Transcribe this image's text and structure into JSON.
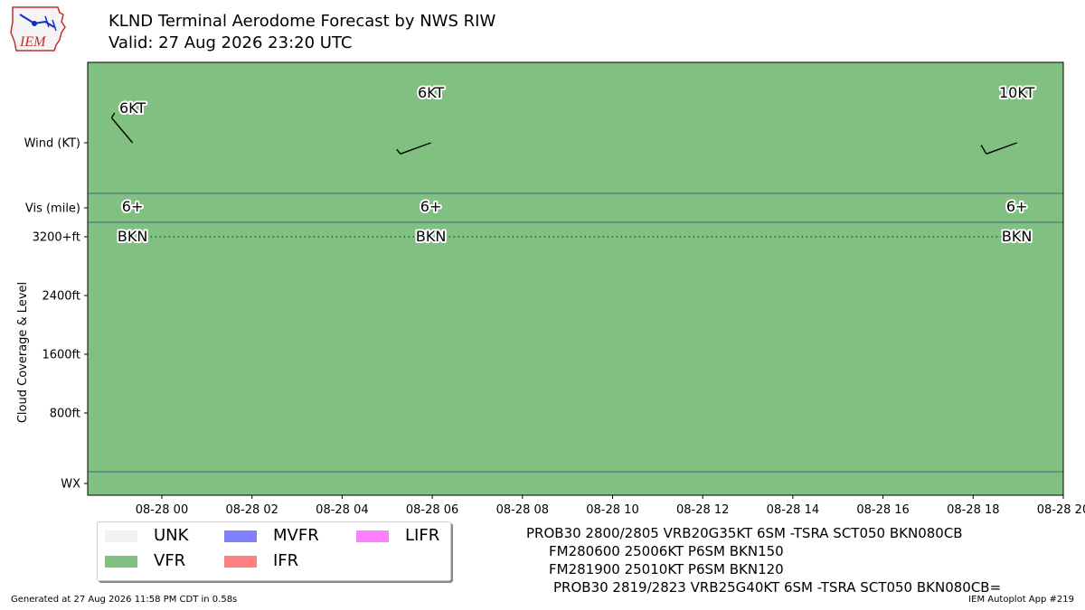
{
  "header": {
    "title_line1": "KLND Terminal Aerodome Forecast by NWS RIW",
    "title_line2": "Valid: 27 Aug 2026 23:20 UTC",
    "logo_text": "IEM"
  },
  "footer": {
    "generated": "Generated at 27 Aug 2026 11:58 PM CDT in 0.58s",
    "app": "IEM Autoplot App #219"
  },
  "taf_text": [
    "PROB30 2800/2805 VRB20G35KT 6SM -TSRA SCT050 BKN080CB",
    "FM280600 25006KT P6SM BKN150",
    "FM281900 25010KT P6SM BKN120",
    "PROB30 2819/2823 VRB25G40KT 6SM -TSRA SCT050 BKN080CB="
  ],
  "legend": [
    {
      "label": "UNK",
      "color": "#f2f2f2"
    },
    {
      "label": "VFR",
      "color": "#80c080"
    },
    {
      "label": "MVFR",
      "color": "#8080ff"
    },
    {
      "label": "IFR",
      "color": "#ff8080"
    },
    {
      "label": "LIFR",
      "color": "#ff80ff"
    }
  ],
  "chart_data": {
    "type": "timeline",
    "title": "KLND Terminal Aerodome Forecast by NWS RIW",
    "ylabel": "Cloud Coverage & Level",
    "background_category": "VFR",
    "background_color": "#80c080",
    "x_ticks": [
      "08-28 00",
      "08-28 02",
      "08-28 04",
      "08-28 06",
      "08-28 08",
      "08-28 10",
      "08-28 12",
      "08-28 14",
      "08-28 16",
      "08-28 18",
      "08-28 20"
    ],
    "y_rows": [
      "Wind (KT)",
      "Vis (mile)",
      "3200+ft",
      "2400ft",
      "1600ft",
      "800ft",
      "WX"
    ],
    "xlim_hours": [
      -1.6,
      20
    ],
    "forecasts": [
      {
        "time_hours": -0.65,
        "wind_label": "6KT",
        "wind_dir_deg": 320,
        "vis_label": "6+",
        "cloud_label": "BKN"
      },
      {
        "time_hours": 5.97,
        "wind_label": "6KT",
        "wind_dir_deg": 250,
        "vis_label": "6+",
        "cloud_label": "BKN"
      },
      {
        "time_hours": 18.97,
        "wind_label": "10KT",
        "wind_dir_deg": 250,
        "vis_label": "6+",
        "cloud_label": "BKN"
      }
    ],
    "cloud_line": {
      "level": "3200+ft",
      "style": "dotted",
      "from_hours": -0.65,
      "to_hours": 18.97
    },
    "grid": false
  }
}
